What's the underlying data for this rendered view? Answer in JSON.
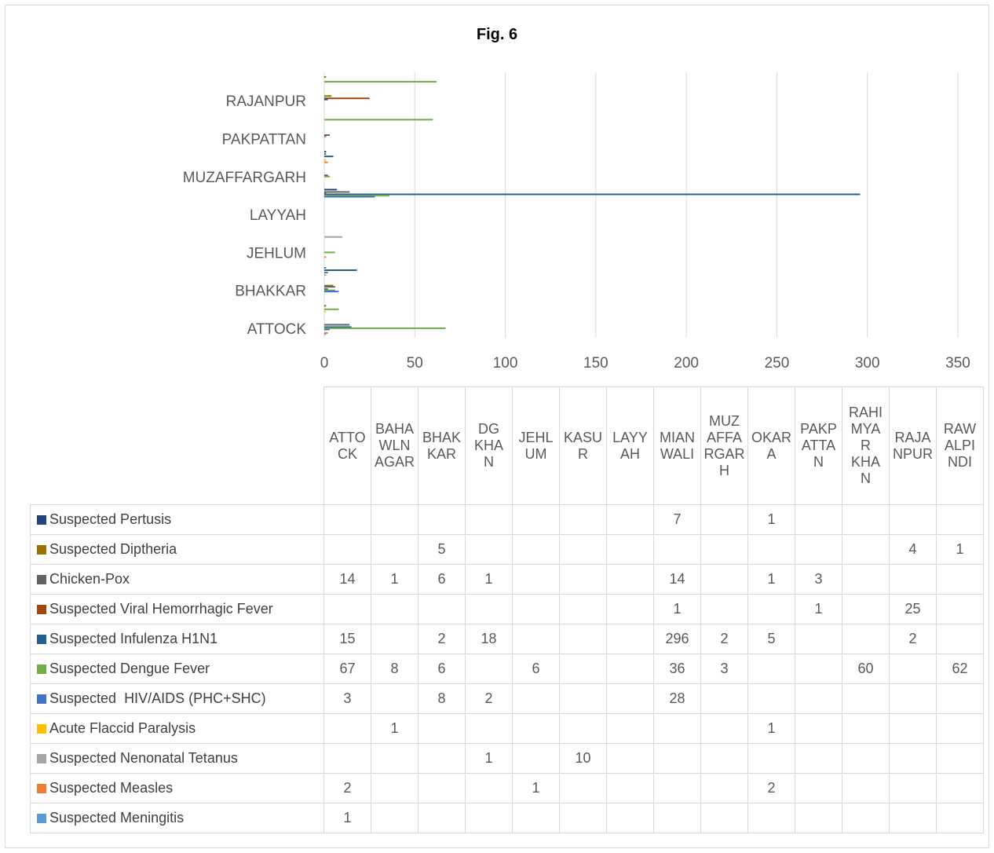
{
  "title": "Fig. 6",
  "chart_data": {
    "type": "bar",
    "orientation": "horizontal",
    "title": "Fig. 6",
    "xlim": [
      0,
      350
    ],
    "x_ticks": [
      "0",
      "50",
      "100",
      "150",
      "200",
      "250",
      "300",
      "350"
    ],
    "grid": true,
    "categories": [
      "ATTOCK",
      "BAHAWLNAGAR",
      "BHAKKAR",
      "DG KHAN",
      "JEHLUM",
      "KASUR",
      "LAYYAH",
      "MIANWALI",
      "MUZAFFARGARH",
      "OKARA",
      "PAKPATTAN",
      "RAHIMYAR KHAN",
      "RAJANPUR",
      "RAWALPINDI"
    ],
    "axis_labels": [
      "ATTOCK",
      "",
      "BHAKKAR",
      "",
      "JEHLUM",
      "",
      "LAYYAH",
      "",
      "MUZAFFARGARH",
      "",
      "PAKPATTAN",
      "",
      "RAJANPUR",
      ""
    ],
    "column_headers": [
      "ATTO CK",
      "BAHA WLN AGAR",
      "BHAK KAR",
      "DG KHA N",
      "JEHL UM",
      "KASU R",
      "LAYY AH",
      "MIAN WALI",
      "MUZ AFFA RGAR H",
      "OKAR A",
      "PAKP ATTA N",
      "RAHI MYA R KHA N",
      "RAJA NPUR",
      "RAW ALPI NDI"
    ],
    "series": [
      {
        "name": "Suspected Pertusis",
        "color": "#264478",
        "values": [
          null,
          null,
          null,
          null,
          null,
          null,
          null,
          7,
          null,
          1,
          null,
          null,
          null,
          null
        ]
      },
      {
        "name": "Suspected Diptheria",
        "color": "#997300",
        "values": [
          null,
          null,
          5,
          null,
          null,
          null,
          null,
          null,
          null,
          null,
          null,
          null,
          4,
          1
        ]
      },
      {
        "name": "Chicken-Pox",
        "color": "#636363",
        "values": [
          14,
          1,
          6,
          1,
          null,
          null,
          null,
          14,
          null,
          1,
          3,
          null,
          null,
          null
        ]
      },
      {
        "name": "Suspected Viral Hemorrhagic Fever",
        "color": "#9e480e",
        "values": [
          null,
          null,
          null,
          null,
          null,
          null,
          null,
          1,
          null,
          null,
          1,
          null,
          25,
          null
        ]
      },
      {
        "name": "Suspected Infulenza H1N1",
        "color": "#255e91",
        "values": [
          15,
          null,
          2,
          18,
          null,
          null,
          null,
          296,
          2,
          5,
          null,
          null,
          2,
          null
        ]
      },
      {
        "name": "Suspected Dengue Fever",
        "color": "#70ad47",
        "values": [
          67,
          8,
          6,
          null,
          6,
          null,
          null,
          36,
          3,
          null,
          null,
          60,
          null,
          62
        ]
      },
      {
        "name": "Suspected  HIV/AIDS (PHC+SHC)",
        "color": "#4472c4",
        "values": [
          3,
          null,
          8,
          2,
          null,
          null,
          null,
          28,
          null,
          null,
          null,
          null,
          null,
          null
        ]
      },
      {
        "name": "Acute Flaccid Paralysis",
        "color": "#ffc000",
        "values": [
          null,
          1,
          null,
          null,
          null,
          null,
          null,
          null,
          null,
          1,
          null,
          null,
          null,
          null
        ]
      },
      {
        "name": "Suspected Nenonatal Tetanus",
        "color": "#a5a5a5",
        "values": [
          null,
          null,
          null,
          1,
          null,
          10,
          null,
          null,
          null,
          null,
          null,
          null,
          null,
          null
        ]
      },
      {
        "name": "Suspected Measles",
        "color": "#ed7d31",
        "values": [
          2,
          null,
          null,
          null,
          1,
          null,
          null,
          null,
          null,
          2,
          null,
          null,
          null,
          null
        ]
      },
      {
        "name": "Suspected Meningitis",
        "color": "#5b9bd5",
        "values": [
          1,
          null,
          null,
          null,
          null,
          null,
          null,
          null,
          null,
          null,
          null,
          null,
          null,
          null
        ]
      }
    ]
  }
}
